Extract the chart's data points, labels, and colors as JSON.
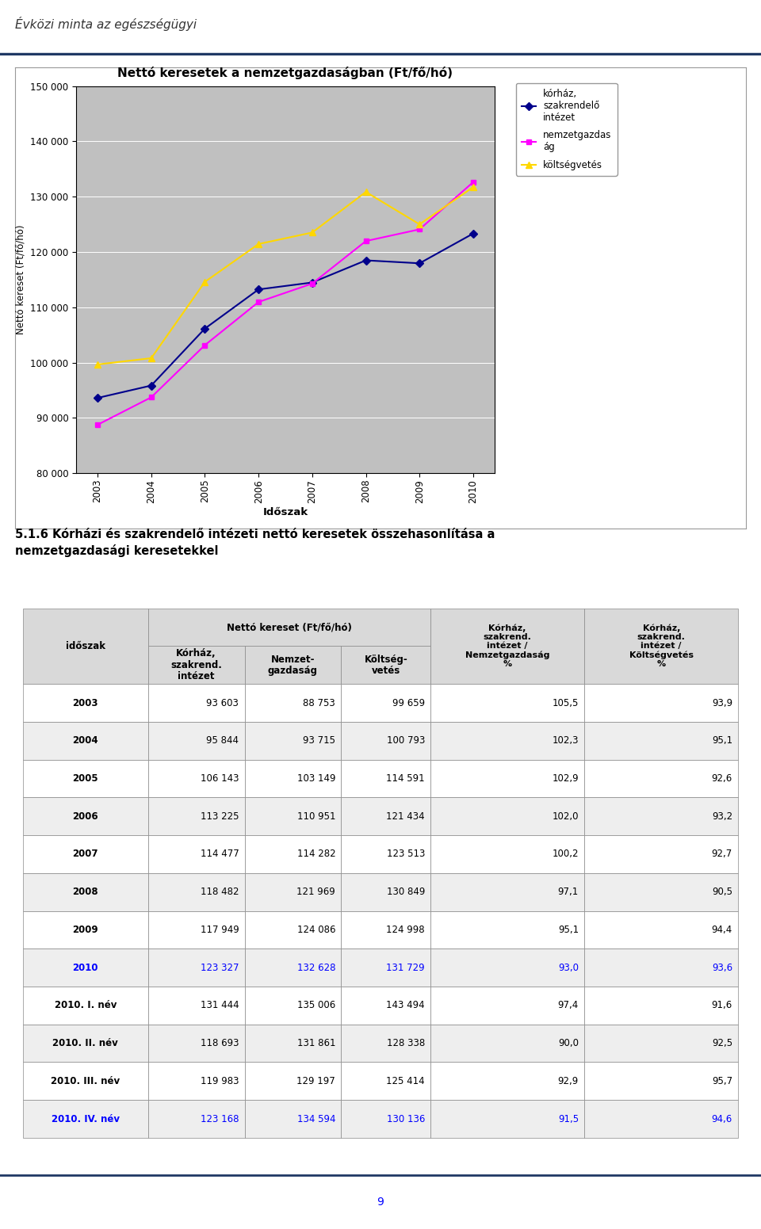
{
  "header_text": "Évközi minta az egészségügyi",
  "chart_title": "Nettó keresetek a nemzetgazdaságban (Ft/fő/hó)",
  "chart_ylabel": "Nettó kereset (Ft/fő/hó)",
  "chart_xlabel": "Időszak",
  "years": [
    2003,
    2004,
    2005,
    2006,
    2007,
    2008,
    2009,
    2010
  ],
  "korhaz": [
    93603,
    95844,
    106143,
    113225,
    114477,
    118482,
    117949,
    123327
  ],
  "nemzetgazdasag": [
    88753,
    93715,
    103149,
    110951,
    114282,
    121969,
    124086,
    132628
  ],
  "koltsegvetes": [
    99659,
    100793,
    114591,
    121434,
    123513,
    130849,
    124998,
    131729
  ],
  "korhaz_color": "#00008B",
  "nemzetgazdasag_color": "#FF00FF",
  "koltsegvetes_color": "#FFD700",
  "ylim_min": 80000,
  "ylim_max": 150000,
  "yticks": [
    80000,
    90000,
    100000,
    110000,
    120000,
    130000,
    140000,
    150000
  ],
  "legend_korhaz": "kórház,\nszakrendelő\nintézet",
  "legend_nemzetgazdasag": "nemzetgazdas\nág",
  "legend_koltsegvetes": "költségvetés",
  "section_title": "5.1.6 Kórházi és szakrendelő intézeti nettó keresetek összehasonlítása a\nnemzetgazdasági keresetekkel",
  "table_rows": [
    [
      "2003",
      "93 603",
      "88 753",
      "99 659",
      "105,5",
      "93,9",
      false
    ],
    [
      "2004",
      "95 844",
      "93 715",
      "100 793",
      "102,3",
      "95,1",
      false
    ],
    [
      "2005",
      "106 143",
      "103 149",
      "114 591",
      "102,9",
      "92,6",
      false
    ],
    [
      "2006",
      "113 225",
      "110 951",
      "121 434",
      "102,0",
      "93,2",
      false
    ],
    [
      "2007",
      "114 477",
      "114 282",
      "123 513",
      "100,2",
      "92,7",
      false
    ],
    [
      "2008",
      "118 482",
      "121 969",
      "130 849",
      "97,1",
      "90,5",
      false
    ],
    [
      "2009",
      "117 949",
      "124 086",
      "124 998",
      "95,1",
      "94,4",
      false
    ],
    [
      "2010",
      "123 327",
      "132 628",
      "131 729",
      "93,0",
      "93,6",
      true
    ],
    [
      "2010. I. név",
      "131 444",
      "135 006",
      "143 494",
      "97,4",
      "91,6",
      false
    ],
    [
      "2010. II. név",
      "118 693",
      "131 861",
      "128 338",
      "90,0",
      "92,5",
      false
    ],
    [
      "2010. III. név",
      "119 983",
      "129 197",
      "125 414",
      "92,9",
      "95,7",
      false
    ],
    [
      "2010. IV. név",
      "123 168",
      "134 594",
      "130 136",
      "91,5",
      "94,6",
      true
    ]
  ],
  "blue_color": "#0000FF",
  "page_number": "9",
  "header_line_color": "#1F3864",
  "header_bg": "#D9D9D9",
  "chart_bg": "#C0C0C0",
  "chart_outer_bg": "#F2F2F2"
}
